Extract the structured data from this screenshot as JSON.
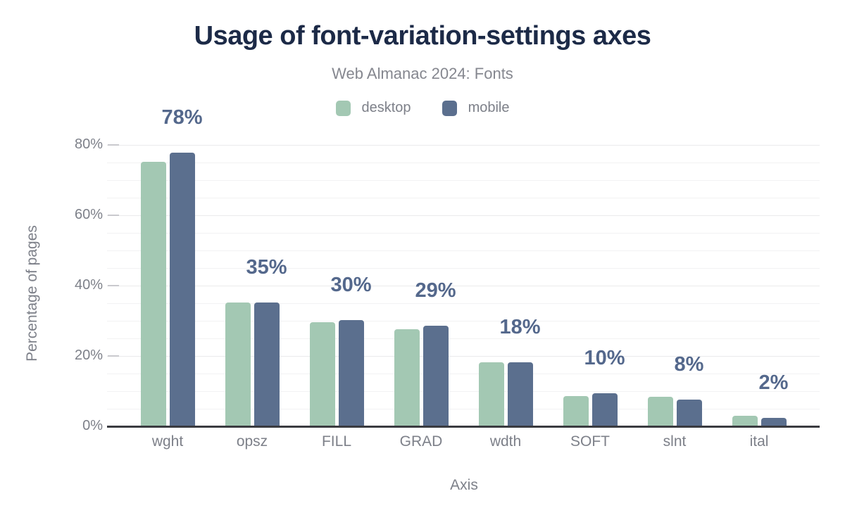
{
  "chart_data": {
    "type": "bar",
    "title": "Usage of font-variation-settings axes",
    "subtitle": "Web Almanac 2024: Fonts",
    "xlabel": "Axis",
    "ylabel": "Percentage of pages",
    "categories": [
      "wght",
      "opsz",
      "FILL",
      "GRAD",
      "wdth",
      "SOFT",
      "slnt",
      "ital"
    ],
    "series": [
      {
        "name": "desktop",
        "color": "#a3c8b3",
        "values": [
          75.2,
          35.2,
          29.7,
          27.7,
          18.3,
          8.7,
          8.4,
          3.0
        ]
      },
      {
        "name": "mobile",
        "color": "#5b6f8e",
        "values": [
          77.9,
          35.3,
          30.2,
          28.6,
          18.3,
          9.5,
          7.6,
          2.4
        ]
      }
    ],
    "bar_labels": [
      "78%",
      "35%",
      "30%",
      "29%",
      "18%",
      "10%",
      "8%",
      "2%"
    ],
    "label_series": "mobile",
    "y_ticks": [
      "0%",
      "20%",
      "40%",
      "60%",
      "80%"
    ],
    "ylim": [
      0,
      80
    ],
    "grid": "horizontal minor gridlines every 5%",
    "legend_position": "top center"
  },
  "colors": {
    "title": "#1c2a47",
    "subtitle": "#85878f",
    "axis_text": "#7d8089",
    "data_label": "#54688c",
    "axis_line": "#3a3b40",
    "gridline_minor": "#f2f2f3",
    "gridline_major": "#eaeaec",
    "tick_mark": "#c9c9ce",
    "background": "#ffffff"
  }
}
